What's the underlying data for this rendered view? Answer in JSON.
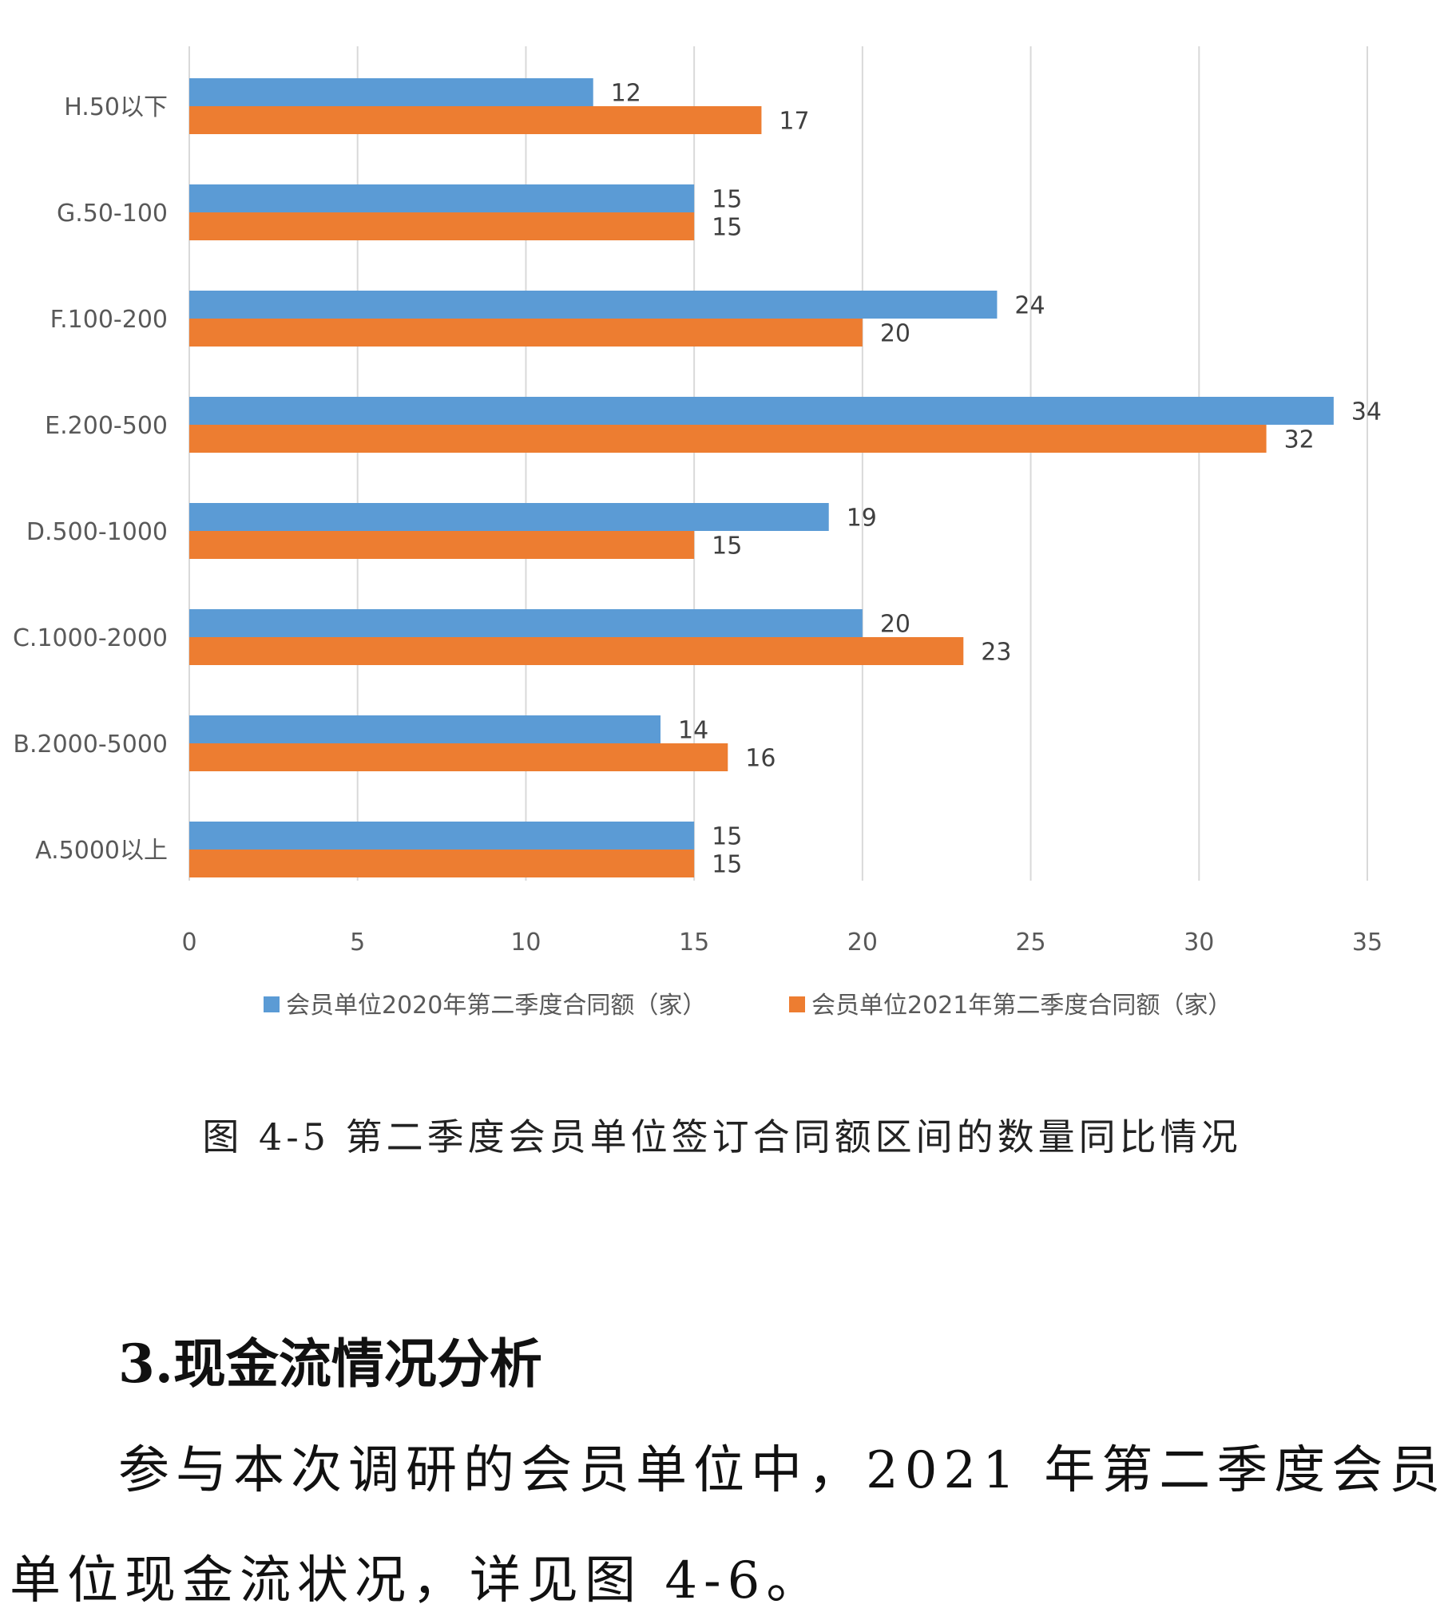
{
  "chart_data": {
    "type": "bar",
    "orientation": "horizontal",
    "categories": [
      "H.50以下",
      "G.50-100",
      "F.100-200",
      "E.200-500",
      "D.500-1000",
      "C.1000-2000",
      "B.2000-5000",
      "A.5000以上"
    ],
    "series": [
      {
        "name": "会员单位2020年第二季度合同额（家）",
        "color": "#5b9bd5",
        "values": [
          12,
          15,
          24,
          34,
          19,
          20,
          14,
          15
        ]
      },
      {
        "name": "会员单位2021年第二季度合同额（家）",
        "color": "#ed7d31",
        "values": [
          17,
          15,
          20,
          32,
          15,
          23,
          16,
          15
        ]
      }
    ],
    "xlim": [
      0,
      35
    ],
    "xticks": [
      0,
      5,
      10,
      15,
      20,
      25,
      30,
      35
    ],
    "grid": true,
    "legend": "bottom"
  },
  "caption": "图 4-5 第二季度会员单位签订合同额区间的数量同比情况",
  "section": {
    "heading": "3.现金流情况分析",
    "paragraph_line1": "参与本次调研的会员单位中，2021 年第二季度会员",
    "paragraph_line2": "单位现金流状况，详见图 4-6。"
  }
}
